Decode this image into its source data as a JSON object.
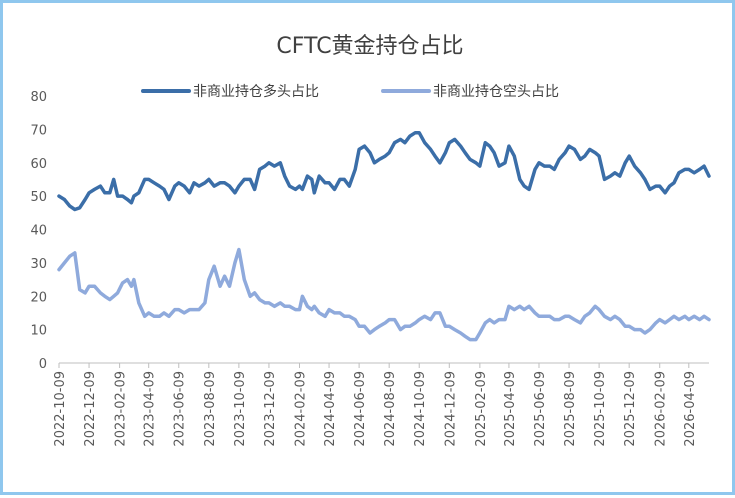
{
  "chart_data": {
    "type": "line",
    "title": "CFTC黄金持仓占比",
    "xlabel": "",
    "ylabel": "",
    "ylim": [
      0,
      80
    ],
    "yticks": [
      "0",
      "10",
      "20",
      "30",
      "40",
      "50",
      "60",
      "70",
      "80"
    ],
    "grid": false,
    "legend": "top",
    "x_tick_labels": [
      "2022-10-09",
      "2022-12-09",
      "2023-02-09",
      "2023-04-09",
      "2023-06-09",
      "2023-08-09",
      "2023-10-09",
      "2023-12-09",
      "2024-02-09",
      "2024-04-09",
      "2024-06-09",
      "2024-08-09",
      "2024-10-09",
      "2024-12-09",
      "2025-02-09",
      "2025-04-09",
      "2025-06-09",
      "2025-08-09",
      "2025-10-09",
      "2025-12-09",
      "2026-02-09",
      "2026-04-09"
    ],
    "x_start": "2022-10-09",
    "x_end": "2026-05-20",
    "series": [
      {
        "name": "非商业持仓多头占比",
        "color": "#3b6ea8",
        "points": [
          [
            "2022-10-09",
            50
          ],
          [
            "2022-10-20",
            49
          ],
          [
            "2022-10-31",
            47
          ],
          [
            "2022-11-10",
            46
          ],
          [
            "2022-11-20",
            46.5
          ],
          [
            "2022-12-01",
            49
          ],
          [
            "2022-12-09",
            51
          ],
          [
            "2022-12-20",
            52
          ],
          [
            "2023-01-01",
            53
          ],
          [
            "2023-01-10",
            51
          ],
          [
            "2023-01-20",
            51
          ],
          [
            "2023-01-28",
            55
          ],
          [
            "2023-02-05",
            50
          ],
          [
            "2023-02-15",
            50
          ],
          [
            "2023-02-25",
            49
          ],
          [
            "2023-03-05",
            48
          ],
          [
            "2023-03-10",
            50
          ],
          [
            "2023-03-20",
            51
          ],
          [
            "2023-04-01",
            55
          ],
          [
            "2023-04-09",
            55
          ],
          [
            "2023-04-20",
            54
          ],
          [
            "2023-05-01",
            53
          ],
          [
            "2023-05-10",
            52
          ],
          [
            "2023-05-20",
            49
          ],
          [
            "2023-06-01",
            53
          ],
          [
            "2023-06-09",
            54
          ],
          [
            "2023-06-20",
            53
          ],
          [
            "2023-07-01",
            51
          ],
          [
            "2023-07-10",
            54
          ],
          [
            "2023-07-20",
            53
          ],
          [
            "2023-08-01",
            54
          ],
          [
            "2023-08-09",
            55
          ],
          [
            "2023-08-20",
            53
          ],
          [
            "2023-09-01",
            54
          ],
          [
            "2023-09-10",
            54
          ],
          [
            "2023-09-20",
            53
          ],
          [
            "2023-10-01",
            51
          ],
          [
            "2023-10-09",
            53
          ],
          [
            "2023-10-20",
            55
          ],
          [
            "2023-11-01",
            55
          ],
          [
            "2023-11-10",
            52
          ],
          [
            "2023-11-20",
            58
          ],
          [
            "2023-12-01",
            59
          ],
          [
            "2023-12-09",
            60
          ],
          [
            "2023-12-20",
            59
          ],
          [
            "2024-01-01",
            60
          ],
          [
            "2024-01-10",
            56
          ],
          [
            "2024-01-20",
            53
          ],
          [
            "2024-02-01",
            52
          ],
          [
            "2024-02-09",
            53
          ],
          [
            "2024-02-15",
            52
          ],
          [
            "2024-02-25",
            56
          ],
          [
            "2024-03-05",
            55
          ],
          [
            "2024-03-10",
            51
          ],
          [
            "2024-03-20",
            56
          ],
          [
            "2024-04-01",
            54
          ],
          [
            "2024-04-09",
            54
          ],
          [
            "2024-04-20",
            52
          ],
          [
            "2024-05-01",
            55
          ],
          [
            "2024-05-10",
            55
          ],
          [
            "2024-05-20",
            53
          ],
          [
            "2024-06-01",
            58
          ],
          [
            "2024-06-09",
            64
          ],
          [
            "2024-06-20",
            65
          ],
          [
            "2024-07-01",
            63
          ],
          [
            "2024-07-10",
            60
          ],
          [
            "2024-07-20",
            61
          ],
          [
            "2024-08-01",
            62
          ],
          [
            "2024-08-09",
            63
          ],
          [
            "2024-08-20",
            66
          ],
          [
            "2024-09-01",
            67
          ],
          [
            "2024-09-10",
            66
          ],
          [
            "2024-09-20",
            68
          ],
          [
            "2024-10-01",
            69
          ],
          [
            "2024-10-09",
            69
          ],
          [
            "2024-10-20",
            66
          ],
          [
            "2024-11-01",
            64
          ],
          [
            "2024-11-10",
            62
          ],
          [
            "2024-11-20",
            60
          ],
          [
            "2024-12-01",
            63
          ],
          [
            "2024-12-09",
            66
          ],
          [
            "2024-12-20",
            67
          ],
          [
            "2025-01-01",
            65
          ],
          [
            "2025-01-10",
            63
          ],
          [
            "2025-01-20",
            61
          ],
          [
            "2025-02-01",
            60
          ],
          [
            "2025-02-09",
            59
          ],
          [
            "2025-02-20",
            66
          ],
          [
            "2025-03-01",
            65
          ],
          [
            "2025-03-10",
            63
          ],
          [
            "2025-03-20",
            59
          ],
          [
            "2025-04-01",
            60
          ],
          [
            "2025-04-09",
            65
          ],
          [
            "2025-04-20",
            62
          ],
          [
            "2025-05-01",
            55
          ],
          [
            "2025-05-10",
            53
          ],
          [
            "2025-05-20",
            52
          ],
          [
            "2025-06-01",
            58
          ],
          [
            "2025-06-09",
            60
          ],
          [
            "2025-06-20",
            59
          ],
          [
            "2025-07-01",
            59
          ],
          [
            "2025-07-10",
            58
          ],
          [
            "2025-07-20",
            61
          ],
          [
            "2025-08-01",
            63
          ],
          [
            "2025-08-09",
            65
          ],
          [
            "2025-08-20",
            64
          ],
          [
            "2025-09-01",
            61
          ],
          [
            "2025-09-10",
            62
          ],
          [
            "2025-09-20",
            64
          ],
          [
            "2025-10-01",
            63
          ],
          [
            "2025-10-09",
            62
          ],
          [
            "2025-10-20",
            55
          ],
          [
            "2025-11-01",
            56
          ],
          [
            "2025-11-10",
            57
          ],
          [
            "2025-11-20",
            56
          ],
          [
            "2025-12-01",
            60
          ],
          [
            "2025-12-09",
            62
          ],
          [
            "2025-12-20",
            59
          ],
          [
            "2026-01-01",
            57
          ],
          [
            "2026-01-10",
            55
          ],
          [
            "2026-01-20",
            52
          ],
          [
            "2026-02-01",
            53
          ],
          [
            "2026-02-09",
            53
          ],
          [
            "2026-02-20",
            51
          ],
          [
            "2026-03-01",
            53
          ],
          [
            "2026-03-10",
            54
          ],
          [
            "2026-03-20",
            57
          ],
          [
            "2026-04-01",
            58
          ],
          [
            "2026-04-09",
            58
          ],
          [
            "2026-04-20",
            57
          ],
          [
            "2026-05-01",
            58
          ],
          [
            "2026-05-10",
            59
          ],
          [
            "2026-05-20",
            56
          ]
        ]
      },
      {
        "name": "非商业持仓空头占比",
        "color": "#8faadc",
        "points": [
          [
            "2022-10-09",
            28
          ],
          [
            "2022-10-20",
            30
          ],
          [
            "2022-10-31",
            32
          ],
          [
            "2022-11-10",
            33
          ],
          [
            "2022-11-20",
            22
          ],
          [
            "2022-12-01",
            21
          ],
          [
            "2022-12-09",
            23
          ],
          [
            "2022-12-20",
            23
          ],
          [
            "2023-01-01",
            21
          ],
          [
            "2023-01-10",
            20
          ],
          [
            "2023-01-20",
            19
          ],
          [
            "2023-01-28",
            20
          ],
          [
            "2023-02-05",
            21
          ],
          [
            "2023-02-15",
            24
          ],
          [
            "2023-02-25",
            25
          ],
          [
            "2023-03-05",
            23
          ],
          [
            "2023-03-10",
            25
          ],
          [
            "2023-03-20",
            18
          ],
          [
            "2023-04-01",
            14
          ],
          [
            "2023-04-09",
            15
          ],
          [
            "2023-04-20",
            14
          ],
          [
            "2023-05-01",
            14
          ],
          [
            "2023-05-10",
            15
          ],
          [
            "2023-05-20",
            14
          ],
          [
            "2023-06-01",
            16
          ],
          [
            "2023-06-09",
            16
          ],
          [
            "2023-06-20",
            15
          ],
          [
            "2023-07-01",
            16
          ],
          [
            "2023-07-10",
            16
          ],
          [
            "2023-07-20",
            16
          ],
          [
            "2023-08-01",
            18
          ],
          [
            "2023-08-09",
            25
          ],
          [
            "2023-08-20",
            29
          ],
          [
            "2023-09-01",
            23
          ],
          [
            "2023-09-10",
            26
          ],
          [
            "2023-09-20",
            23
          ],
          [
            "2023-10-01",
            30
          ],
          [
            "2023-10-09",
            34
          ],
          [
            "2023-10-20",
            25
          ],
          [
            "2023-11-01",
            20
          ],
          [
            "2023-11-10",
            21
          ],
          [
            "2023-11-20",
            19
          ],
          [
            "2023-12-01",
            18
          ],
          [
            "2023-12-09",
            18
          ],
          [
            "2023-12-20",
            17
          ],
          [
            "2024-01-01",
            18
          ],
          [
            "2024-01-10",
            17
          ],
          [
            "2024-01-20",
            17
          ],
          [
            "2024-02-01",
            16
          ],
          [
            "2024-02-09",
            16
          ],
          [
            "2024-02-15",
            20
          ],
          [
            "2024-02-25",
            17
          ],
          [
            "2024-03-05",
            16
          ],
          [
            "2024-03-10",
            17
          ],
          [
            "2024-03-20",
            15
          ],
          [
            "2024-04-01",
            14
          ],
          [
            "2024-04-09",
            16
          ],
          [
            "2024-04-20",
            15
          ],
          [
            "2024-05-01",
            15
          ],
          [
            "2024-05-10",
            14
          ],
          [
            "2024-05-20",
            14
          ],
          [
            "2024-06-01",
            13
          ],
          [
            "2024-06-09",
            11
          ],
          [
            "2024-06-20",
            11
          ],
          [
            "2024-07-01",
            9
          ],
          [
            "2024-07-10",
            10
          ],
          [
            "2024-07-20",
            11
          ],
          [
            "2024-08-01",
            12
          ],
          [
            "2024-08-09",
            13
          ],
          [
            "2024-08-20",
            13
          ],
          [
            "2024-09-01",
            10
          ],
          [
            "2024-09-10",
            11
          ],
          [
            "2024-09-20",
            11
          ],
          [
            "2024-10-01",
            12
          ],
          [
            "2024-10-09",
            13
          ],
          [
            "2024-10-20",
            14
          ],
          [
            "2024-11-01",
            13
          ],
          [
            "2024-11-10",
            15
          ],
          [
            "2024-11-20",
            15
          ],
          [
            "2024-12-01",
            11
          ],
          [
            "2024-12-09",
            11
          ],
          [
            "2024-12-20",
            10
          ],
          [
            "2025-01-01",
            9
          ],
          [
            "2025-01-10",
            8
          ],
          [
            "2025-01-20",
            7
          ],
          [
            "2025-02-01",
            7
          ],
          [
            "2025-02-09",
            9
          ],
          [
            "2025-02-20",
            12
          ],
          [
            "2025-03-01",
            13
          ],
          [
            "2025-03-10",
            12
          ],
          [
            "2025-03-20",
            13
          ],
          [
            "2025-04-01",
            13
          ],
          [
            "2025-04-09",
            17
          ],
          [
            "2025-04-20",
            16
          ],
          [
            "2025-05-01",
            17
          ],
          [
            "2025-05-10",
            16
          ],
          [
            "2025-05-20",
            17
          ],
          [
            "2025-06-01",
            15
          ],
          [
            "2025-06-09",
            14
          ],
          [
            "2025-06-20",
            14
          ],
          [
            "2025-07-01",
            14
          ],
          [
            "2025-07-10",
            13
          ],
          [
            "2025-07-20",
            13
          ],
          [
            "2025-08-01",
            14
          ],
          [
            "2025-08-09",
            14
          ],
          [
            "2025-08-20",
            13
          ],
          [
            "2025-09-01",
            12
          ],
          [
            "2025-09-10",
            14
          ],
          [
            "2025-09-20",
            15
          ],
          [
            "2025-10-01",
            17
          ],
          [
            "2025-10-09",
            16
          ],
          [
            "2025-10-20",
            14
          ],
          [
            "2025-11-01",
            13
          ],
          [
            "2025-11-10",
            14
          ],
          [
            "2025-11-20",
            13
          ],
          [
            "2025-12-01",
            11
          ],
          [
            "2025-12-09",
            11
          ],
          [
            "2025-12-20",
            10
          ],
          [
            "2026-01-01",
            10
          ],
          [
            "2026-01-10",
            9
          ],
          [
            "2026-01-20",
            10
          ],
          [
            "2026-02-01",
            12
          ],
          [
            "2026-02-09",
            13
          ],
          [
            "2026-02-20",
            12
          ],
          [
            "2026-03-01",
            13
          ],
          [
            "2026-03-10",
            14
          ],
          [
            "2026-03-20",
            13
          ],
          [
            "2026-04-01",
            14
          ],
          [
            "2026-04-09",
            13
          ],
          [
            "2026-04-20",
            14
          ],
          [
            "2026-05-01",
            13
          ],
          [
            "2026-05-10",
            14
          ],
          [
            "2026-05-20",
            13
          ]
        ]
      }
    ]
  }
}
